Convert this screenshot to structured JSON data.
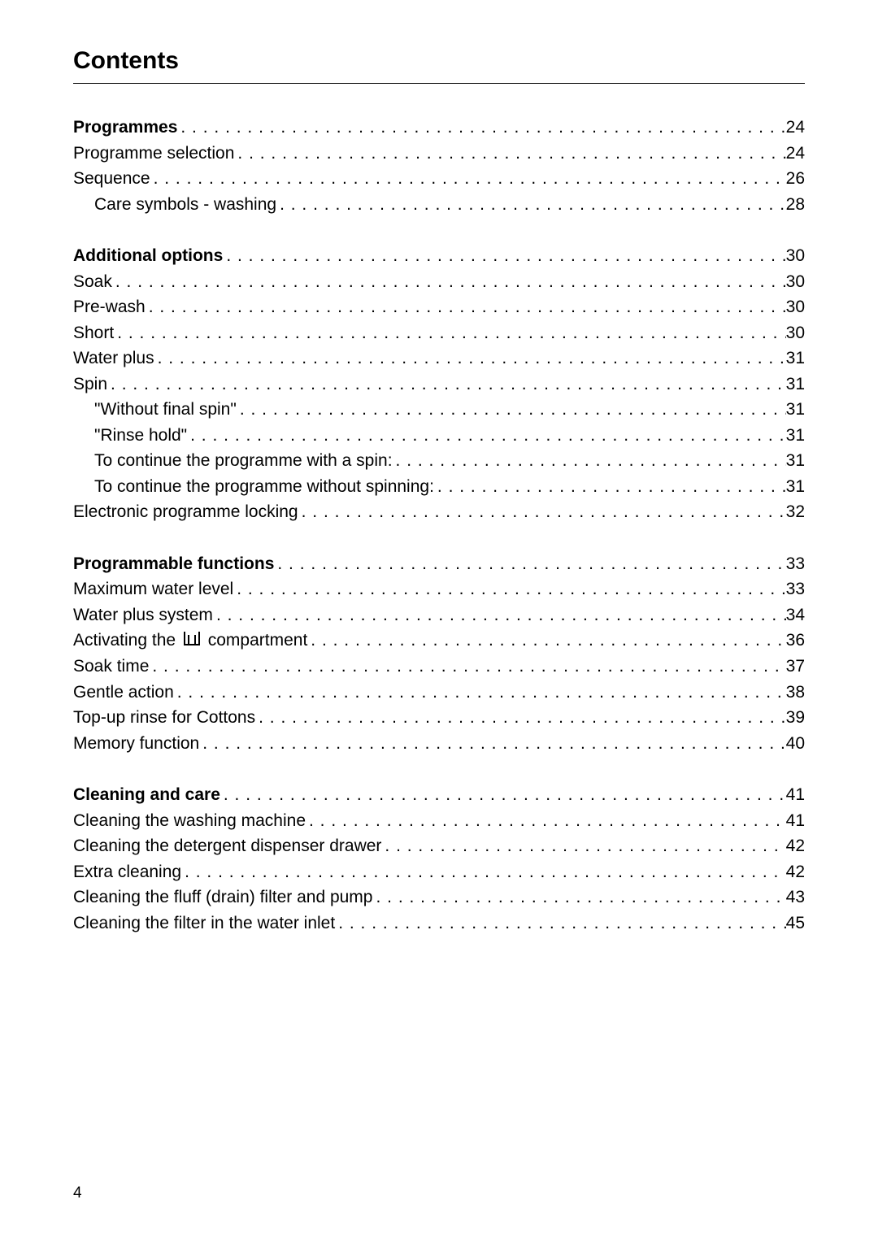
{
  "title": "Contents",
  "page_number": "4",
  "sections": [
    {
      "entries": [
        {
          "label": "Programmes",
          "page": "24",
          "bold": true,
          "indent": 0
        },
        {
          "label": "Programme selection",
          "page": "24",
          "bold": false,
          "indent": 0
        },
        {
          "label": "Sequence",
          "page": "26",
          "bold": false,
          "indent": 0
        },
        {
          "label": "Care symbols - washing",
          "page": "28",
          "bold": false,
          "indent": 1
        }
      ]
    },
    {
      "entries": [
        {
          "label": "Additional options",
          "page": "30",
          "bold": true,
          "indent": 0
        },
        {
          "label": "Soak",
          "page": "30",
          "bold": false,
          "indent": 0
        },
        {
          "label": "Pre-wash",
          "page": "30",
          "bold": false,
          "indent": 0
        },
        {
          "label": "Short",
          "page": "30",
          "bold": false,
          "indent": 0
        },
        {
          "label": "Water plus",
          "page": "31",
          "bold": false,
          "indent": 0
        },
        {
          "label": "Spin",
          "page": "31",
          "bold": false,
          "indent": 0
        },
        {
          "label": "\"Without final spin\"",
          "page": "31",
          "bold": false,
          "indent": 1
        },
        {
          "label": "\"Rinse hold\"",
          "page": "31",
          "bold": false,
          "indent": 1
        },
        {
          "label": "To continue the programme with a spin:",
          "page": "31",
          "bold": false,
          "indent": 1
        },
        {
          "label": "To continue the programme without spinning:",
          "page": "31",
          "bold": false,
          "indent": 1
        },
        {
          "label": "Electronic programme locking",
          "page": "32",
          "bold": false,
          "indent": 0
        }
      ]
    },
    {
      "entries": [
        {
          "label": "Programmable functions",
          "page": "33",
          "bold": true,
          "indent": 0
        },
        {
          "label": "Maximum water level",
          "page": "33",
          "bold": false,
          "indent": 0
        },
        {
          "label": "Water plus system",
          "page": "34",
          "bold": false,
          "indent": 0
        },
        {
          "label_pre": "Activating the ",
          "label_post": " compartment",
          "page": "36",
          "bold": false,
          "indent": 0,
          "has_icon": true
        },
        {
          "label": "Soak time",
          "page": "37",
          "bold": false,
          "indent": 0
        },
        {
          "label": "Gentle action",
          "page": "38",
          "bold": false,
          "indent": 0
        },
        {
          "label": "Top-up rinse for Cottons",
          "page": "39",
          "bold": false,
          "indent": 0
        },
        {
          "label": "Memory function",
          "page": "40",
          "bold": false,
          "indent": 0
        }
      ]
    },
    {
      "entries": [
        {
          "label": "Cleaning and care",
          "page": "41",
          "bold": true,
          "indent": 0
        },
        {
          "label": "Cleaning the washing machine",
          "page": "41",
          "bold": false,
          "indent": 0
        },
        {
          "label": "Cleaning the detergent dispenser drawer",
          "page": "42",
          "bold": false,
          "indent": 0
        },
        {
          "label": "Extra cleaning",
          "page": "42",
          "bold": false,
          "indent": 0
        },
        {
          "label": "Cleaning the fluff (drain) filter and pump",
          "page": "43",
          "bold": false,
          "indent": 0
        },
        {
          "label": "Cleaning the filter in the water inlet",
          "page": "45",
          "bold": false,
          "indent": 0
        }
      ]
    }
  ]
}
